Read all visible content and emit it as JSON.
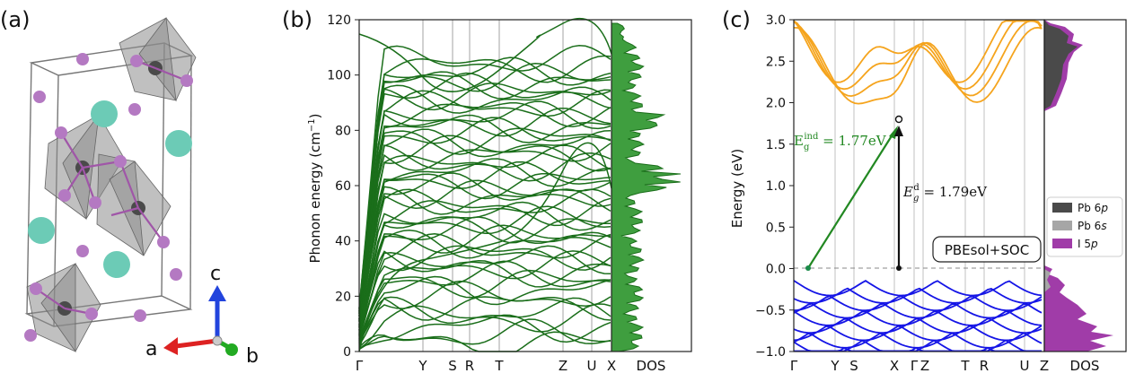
{
  "panel_a": {
    "label": "(a)",
    "axes": {
      "a": "a",
      "b": "b",
      "c": "c"
    }
  },
  "panel_b": {
    "label": "(b)",
    "ylabel_main": "Phonon energy (cm",
    "ylabel_sup": "−1",
    "ylabel_close": ")",
    "kpath": [
      "Γ",
      "Y",
      "S",
      "R",
      "T",
      "Z",
      "U",
      "X"
    ],
    "dos_label": "DOS",
    "yticks": [
      0,
      20,
      40,
      60,
      80,
      100,
      120
    ]
  },
  "panel_c": {
    "label": "(c)",
    "ylabel": "Energy (eV)",
    "kpath": [
      "Γ",
      "Y",
      "S",
      "X",
      "Γ",
      "Z",
      "T",
      "R",
      "U",
      "Z"
    ],
    "dos_label": "DOS",
    "yticks": [
      "3.0",
      "2.5",
      "2.0",
      "1.5",
      "1.0",
      "0.5",
      "0.0",
      "−0.5",
      "−1.0"
    ],
    "box_label": "PBEsol+SOC",
    "gap_ind": {
      "base": "E",
      "sub": "g",
      "sup": "ind",
      "value": " = 1.77eV"
    },
    "gap_dir": {
      "base": "E",
      "sub": "g",
      "sup": "d",
      "value": " = 1.79eV"
    },
    "legend": [
      {
        "label": "Pb 6",
        "orb": "p",
        "color": "#4a4a4a"
      },
      {
        "label": "Pb 6",
        "orb": "s",
        "color": "#a6a6a6"
      },
      {
        "label": "I 5",
        "orb": "p",
        "color": "#a03ca8"
      }
    ]
  },
  "colors": {
    "phonon": "#1a6e1a",
    "phonon_dos": "#3f9e3f",
    "conduction": "#f5a41d",
    "valence": "#1515e6",
    "arrow_ind": "#228822"
  }
}
